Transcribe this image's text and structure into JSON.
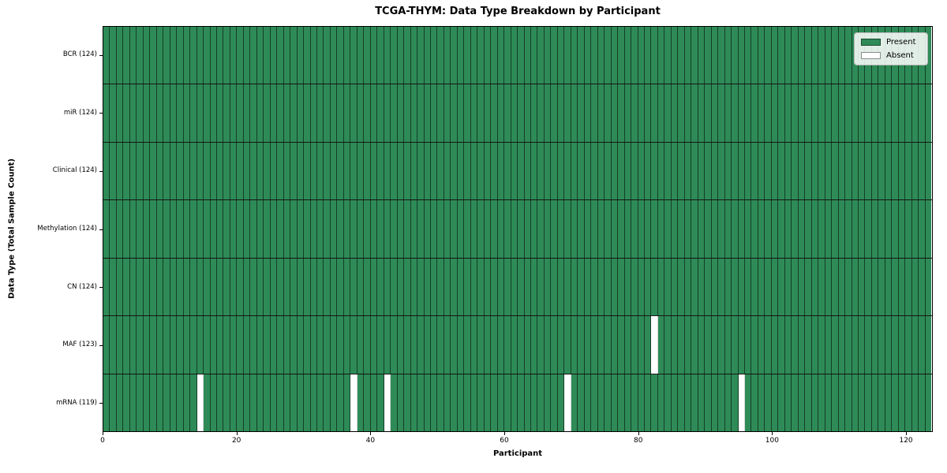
{
  "title": "TCGA-THYM: Data Type Breakdown by Participant",
  "colors": {
    "present": "#2e8b57",
    "absent": "#ffffff",
    "cell_edge": "rgba(0,0,0,0.55)",
    "row_divider": "#141414",
    "frame": "#000000"
  },
  "legend": {
    "present_label": "Present",
    "absent_label": "Absent"
  },
  "chart_data": {
    "type": "heatmap",
    "title": "TCGA-THYM: Data Type Breakdown by Participant",
    "xlabel": "Participant",
    "ylabel": "Data Type (Total Sample Count)",
    "legend": [
      "Present",
      "Absent"
    ],
    "legend_position": "upper right",
    "n_participants": 124,
    "x_ticks": [
      0,
      20,
      40,
      60,
      80,
      100,
      120
    ],
    "x_range": [
      0,
      124
    ],
    "cell_values": {
      "present": 1,
      "absent": 0
    },
    "rows": [
      {
        "label": "BCR (124)",
        "data_type": "BCR",
        "present_count": 124,
        "absent_participants": []
      },
      {
        "label": "miR (124)",
        "data_type": "miR",
        "present_count": 124,
        "absent_participants": []
      },
      {
        "label": "Clinical (124)",
        "data_type": "Clinical",
        "present_count": 124,
        "absent_participants": []
      },
      {
        "label": "Methylation (124)",
        "data_type": "Methylation",
        "present_count": 124,
        "absent_participants": []
      },
      {
        "label": "CN (124)",
        "data_type": "CN",
        "present_count": 124,
        "absent_participants": []
      },
      {
        "label": "MAF (123)",
        "data_type": "MAF",
        "present_count": 123,
        "absent_participants": [
          82
        ]
      },
      {
        "label": "mRNA (119)",
        "data_type": "mRNA",
        "present_count": 119,
        "absent_participants": [
          14,
          37,
          42,
          69,
          95
        ]
      }
    ]
  }
}
